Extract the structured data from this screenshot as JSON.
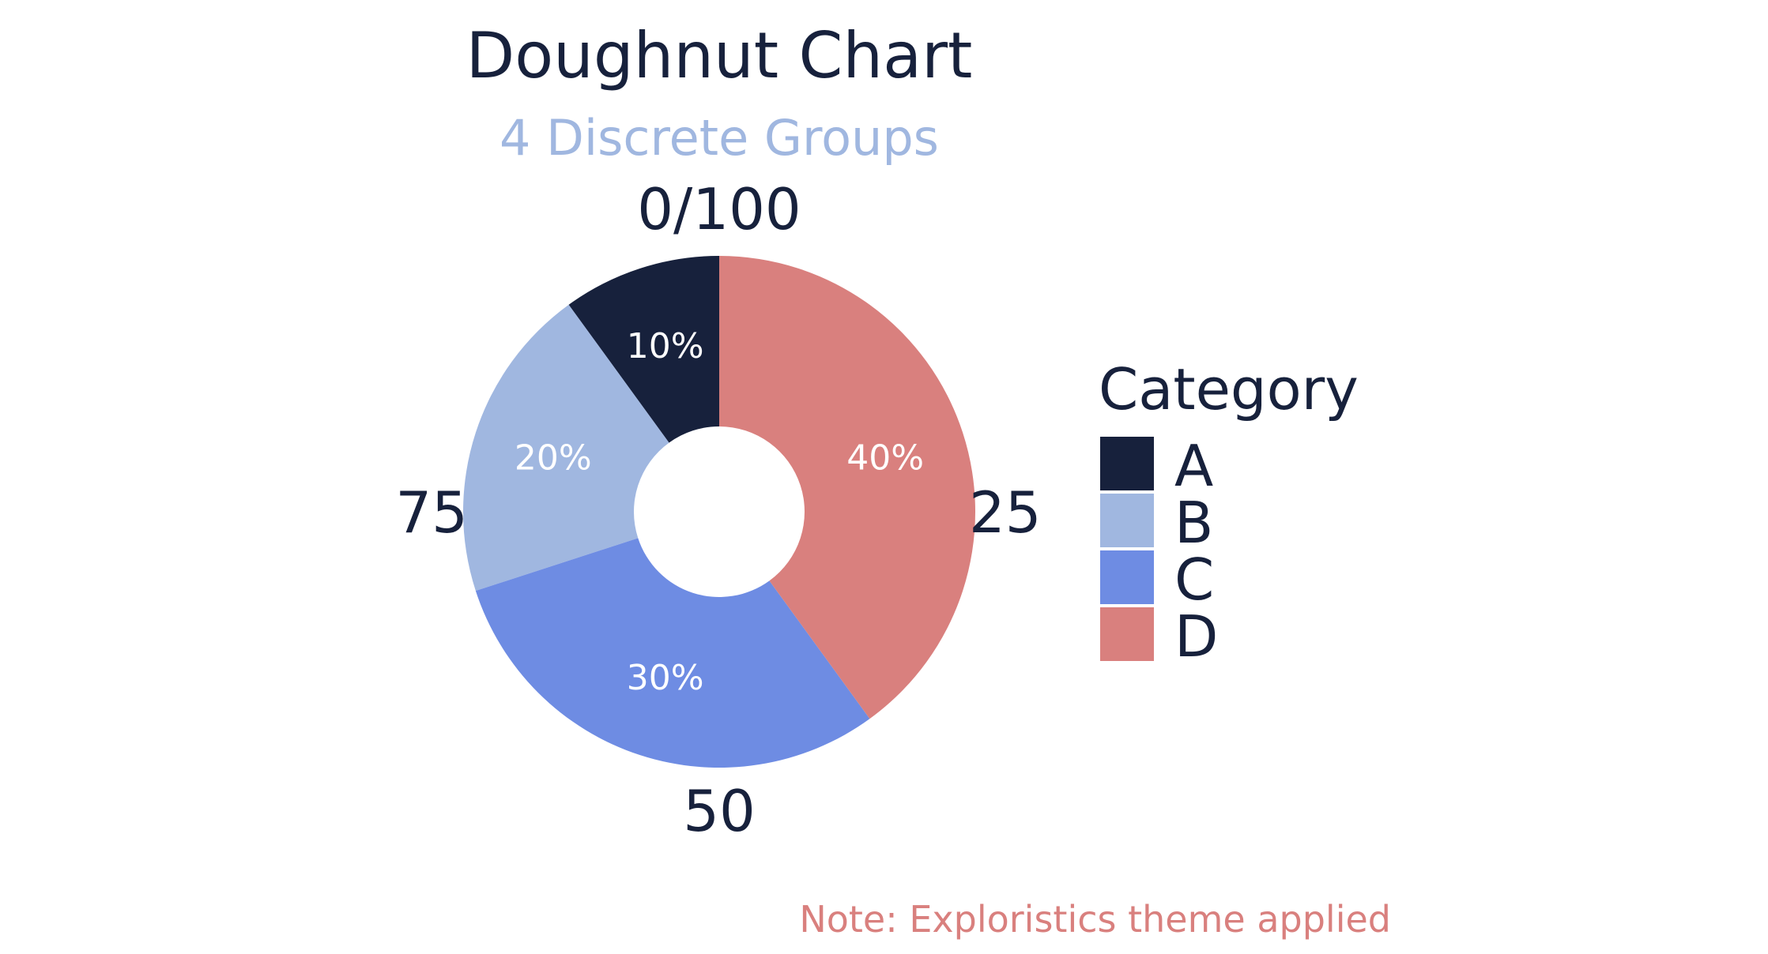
{
  "chart_data": {
    "type": "pie",
    "variant": "doughnut",
    "title": "Doughnut Chart",
    "subtitle": "4 Discrete Groups",
    "caption": "Note: Exploristics theme applied",
    "legend": {
      "title": "Category",
      "placement": "right"
    },
    "categories": [
      "A",
      "B",
      "C",
      "D"
    ],
    "values": [
      10,
      20,
      30,
      40
    ],
    "labels": [
      "10%",
      "20%",
      "30%",
      "40%"
    ],
    "colors": [
      "#17213c",
      "#a0b7e0",
      "#6e8ce3",
      "#d9807e"
    ],
    "direction": "counterclockwise",
    "start": "top",
    "axis_ticks": [
      "0/100",
      "25",
      "50",
      "75"
    ],
    "axis_tick_values": [
      0,
      25,
      50,
      75
    ],
    "ylim": [
      0,
      100
    ]
  },
  "colors": {
    "text": "#17213c",
    "subtitle": "#a0b7e0",
    "caption": "#d9807e",
    "slice_label": "#ffffff",
    "background": "#ffffff"
  }
}
